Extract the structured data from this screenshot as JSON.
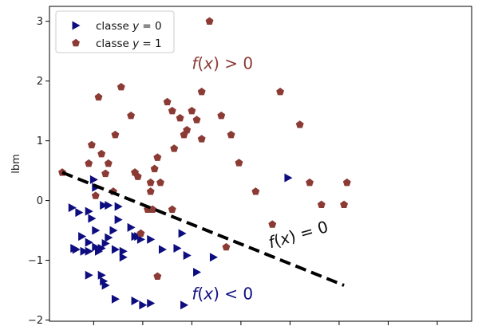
{
  "chart_data": {
    "type": "scatter",
    "ylabel": "lbm",
    "xlabel": "",
    "xlim": [
      -1.45,
      2.85
    ],
    "ylim": [
      -2.02,
      3.25
    ],
    "yticks": [
      -2,
      -1,
      0,
      1,
      2,
      3
    ],
    "ytick_labels": [
      "−2",
      "−1",
      "0",
      "1",
      "2",
      "3"
    ],
    "xticks": [
      -1.0,
      -0.5,
      0.0,
      0.5,
      1.0,
      1.5,
      2.0,
      2.5
    ],
    "grid": false,
    "legend_position": "top-left",
    "colors": {
      "class0": "#0d0d80",
      "class1": "#8b3a34",
      "boundary": "#000000"
    },
    "series": [
      {
        "name": "classe $y=0$",
        "legend_label": "classe y = 0",
        "marker": "triangle-right",
        "color": "#0d0d80",
        "points": [
          [
            -1.22,
            -0.12
          ],
          [
            -1.15,
            -0.2
          ],
          [
            -1.05,
            -0.18
          ],
          [
            -1.0,
            0.35
          ],
          [
            -0.98,
            0.22
          ],
          [
            -0.9,
            -0.08
          ],
          [
            -0.85,
            -0.08
          ],
          [
            -0.75,
            -0.32
          ],
          [
            -0.75,
            -0.1
          ],
          [
            -1.02,
            -0.3
          ],
          [
            -0.98,
            -0.5
          ],
          [
            -1.12,
            -0.6
          ],
          [
            -1.05,
            -0.7
          ],
          [
            -0.98,
            -0.78
          ],
          [
            -0.95,
            -0.85
          ],
          [
            -0.92,
            -0.8
          ],
          [
            -0.88,
            -0.72
          ],
          [
            -0.85,
            -0.62
          ],
          [
            -1.1,
            -0.85
          ],
          [
            -1.18,
            -0.82
          ],
          [
            -1.2,
            -0.8
          ],
          [
            -1.05,
            -0.85
          ],
          [
            -0.8,
            -0.5
          ],
          [
            -0.78,
            -0.82
          ],
          [
            -0.7,
            -0.85
          ],
          [
            -0.7,
            -0.95
          ],
          [
            -0.62,
            -0.45
          ],
          [
            -0.58,
            -0.6
          ],
          [
            -0.55,
            -0.6
          ],
          [
            -0.52,
            -0.65
          ],
          [
            -0.42,
            -0.65
          ],
          [
            -0.3,
            -0.82
          ],
          [
            -0.15,
            -0.8
          ],
          [
            -0.1,
            -0.55
          ],
          [
            -0.05,
            -0.92
          ],
          [
            0.22,
            -0.95
          ],
          [
            -1.05,
            -1.25
          ],
          [
            -0.92,
            -1.25
          ],
          [
            -0.9,
            -1.35
          ],
          [
            -0.88,
            -1.42
          ],
          [
            -0.78,
            -1.65
          ],
          [
            -0.58,
            -1.68
          ],
          [
            -0.5,
            -1.75
          ],
          [
            -0.42,
            -1.72
          ],
          [
            -0.08,
            -1.75
          ],
          [
            0.98,
            0.38
          ],
          [
            0.05,
            -1.2
          ]
        ]
      },
      {
        "name": "classe $y=1$",
        "legend_label": "classe y = 1",
        "marker": "pentagon",
        "color": "#8b3a34",
        "points": [
          [
            -1.32,
            0.47
          ],
          [
            -1.05,
            0.62
          ],
          [
            -1.02,
            0.93
          ],
          [
            -0.95,
            1.73
          ],
          [
            -0.92,
            0.78
          ],
          [
            -0.85,
            0.62
          ],
          [
            -0.8,
            0.15
          ],
          [
            -0.78,
            1.1
          ],
          [
            -0.72,
            1.9
          ],
          [
            -0.62,
            1.42
          ],
          [
            -0.58,
            0.47
          ],
          [
            -0.55,
            0.4
          ],
          [
            -0.42,
            0.3
          ],
          [
            -0.42,
            0.15
          ],
          [
            -0.38,
            0.53
          ],
          [
            -0.35,
            0.72
          ],
          [
            -0.32,
            0.3
          ],
          [
            -0.25,
            1.65
          ],
          [
            -0.2,
            1.5
          ],
          [
            -0.18,
            0.87
          ],
          [
            -0.12,
            1.38
          ],
          [
            -0.08,
            1.1
          ],
          [
            -0.05,
            1.18
          ],
          [
            0.0,
            1.5
          ],
          [
            0.05,
            1.35
          ],
          [
            0.1,
            1.82
          ],
          [
            0.1,
            1.03
          ],
          [
            0.18,
            3.0
          ],
          [
            0.3,
            1.42
          ],
          [
            0.4,
            1.1
          ],
          [
            0.48,
            0.63
          ],
          [
            0.65,
            0.15
          ],
          [
            0.82,
            -0.4
          ],
          [
            0.9,
            1.82
          ],
          [
            1.1,
            1.27
          ],
          [
            1.2,
            0.3
          ],
          [
            1.32,
            -0.07
          ],
          [
            1.55,
            -0.07
          ],
          [
            1.58,
            0.3
          ],
          [
            -0.52,
            -0.55
          ],
          [
            -0.2,
            -0.15
          ],
          [
            -0.45,
            -0.15
          ],
          [
            0.35,
            -0.78
          ],
          [
            -0.35,
            -1.27
          ],
          [
            -0.4,
            -0.15
          ],
          [
            -0.98,
            0.08
          ],
          [
            -0.88,
            0.45
          ]
        ]
      }
    ],
    "boundary_line": {
      "x": [
        -1.32,
        1.55
      ],
      "y": [
        0.47,
        -1.42
      ],
      "style": "dashed"
    },
    "annotations": [
      {
        "text_parts": [
          "f",
          "(",
          "x",
          ") > 0"
        ],
        "text": "f(x) > 0",
        "x": 0.0,
        "y": 2.2,
        "color": "#8b3a34"
      },
      {
        "text_parts": [
          "f",
          "(",
          "x",
          ") = 0"
        ],
        "text": "f(x) = 0",
        "x": 0.8,
        "y": -0.8,
        "color": "#111111",
        "rotation": -16
      },
      {
        "text_parts": [
          "f",
          "(",
          "x",
          ") < 0"
        ],
        "text": "f(x) < 0",
        "x": 0.0,
        "y": -1.65,
        "color": "#0d0d80"
      }
    ]
  }
}
